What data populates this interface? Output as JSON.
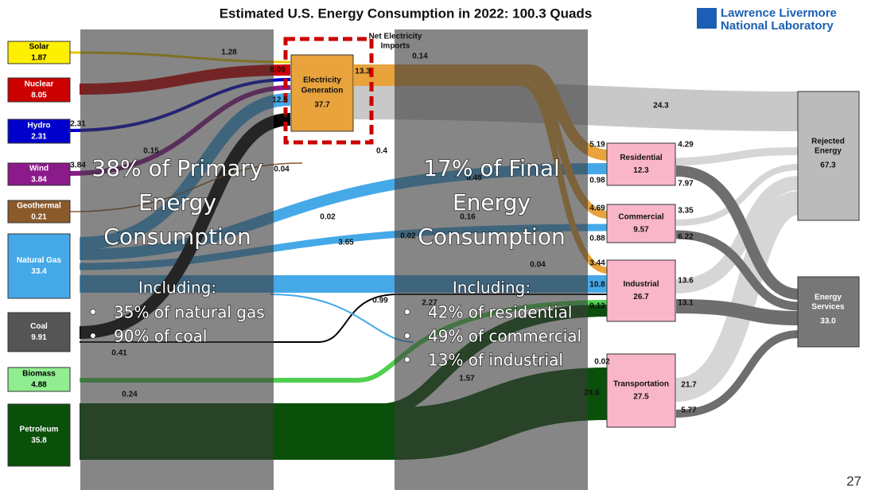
{
  "header": {
    "title": "Estimated U.S. Energy Consumption in 2022: 100.3 Quads",
    "logo": [
      "Lawrence Livermore",
      "National Laboratory"
    ]
  },
  "sources": [
    {
      "name": "Solar",
      "value": "1.87"
    },
    {
      "name": "Nuclear",
      "value": "8.05"
    },
    {
      "name": "Hydro",
      "value": "2.31"
    },
    {
      "name": "Wind",
      "value": "3.84"
    },
    {
      "name": "Geothermal",
      "value": "0.21"
    },
    {
      "name": "Natural Gas",
      "value": "33.4"
    },
    {
      "name": "Coal",
      "value": "9.91"
    },
    {
      "name": "Biomass",
      "value": "4.88"
    },
    {
      "name": "Petroleum",
      "value": "35.8"
    }
  ],
  "electricity": {
    "name": [
      "Electricity",
      "Generation"
    ],
    "value": "37.7",
    "imports_label": [
      "Net Electricity",
      "Imports"
    ],
    "imports_value": "0.14"
  },
  "sectors": [
    {
      "name": "Residential",
      "value": "12.3"
    },
    {
      "name": "Commercial",
      "value": "9.57"
    },
    {
      "name": "Industrial",
      "value": "26.7"
    },
    {
      "name": "Transportation",
      "value": "27.5"
    }
  ],
  "outputs": [
    {
      "name": [
        "Rejected",
        "Energy"
      ],
      "value": "67.3"
    },
    {
      "name": [
        "Energy",
        "Services"
      ],
      "value": "33.0"
    }
  ],
  "flow_labels": [
    "1.28",
    "8.05",
    "13.3",
    "12.5",
    "8.9",
    "2.31",
    "3.84",
    "0.15",
    "0.04",
    "0.4",
    "0.02",
    "3.65",
    "0.16",
    "0.02",
    "0.04",
    "0.99",
    "2.27",
    "0.41",
    "0.24",
    "1.57",
    "0.48",
    "24.3",
    "5.19",
    "0.98",
    "4.29",
    "7.97",
    "4.69",
    "0.88",
    "3.35",
    "6.22",
    "3.44",
    "10.8",
    "9.13",
    "13.6",
    "13.1",
    "0.02",
    "24.6",
    "21.7",
    "5.77"
  ],
  "overlays": [
    {
      "heading": [
        "38% of Primary",
        "Energy",
        "Consumption"
      ],
      "intro": "Including:",
      "bullets": [
        "35% of natural gas",
        "90% of coal"
      ]
    },
    {
      "heading": [
        "17% of Final",
        "Energy",
        "Consumption"
      ],
      "intro": "Including:",
      "bullets": [
        "42% of residential",
        "49% of commercial",
        "13% of industrial"
      ]
    }
  ],
  "page_number": "27"
}
